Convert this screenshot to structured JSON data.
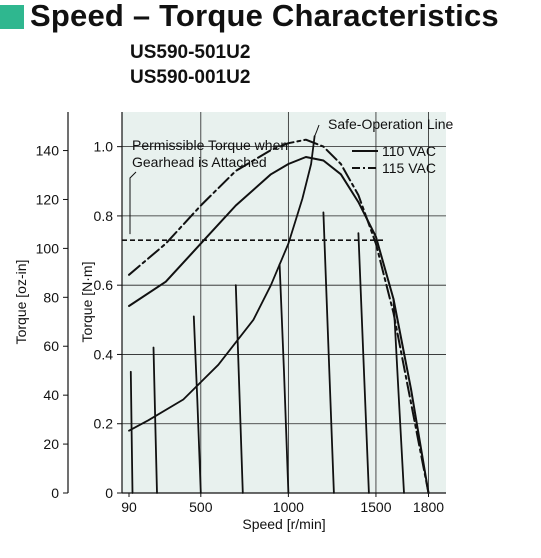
{
  "page": {
    "heading": "Speed – Torque Characteristics",
    "models": [
      "US590-501U2",
      "US590-001U2"
    ]
  },
  "colors": {
    "accent": "#2fb78f",
    "plot_background": "#e8f1ee",
    "curve": "#111111"
  },
  "chart_data": {
    "type": "line",
    "xlabel": "Speed [r/min]",
    "ylabel": "Torque [N·m]",
    "ylabel_secondary": "Torque [oz-in]",
    "xlim": [
      50,
      1900
    ],
    "ylim": [
      0,
      1.1
    ],
    "x_ticks": [
      {
        "value": 90,
        "label": "90"
      },
      {
        "value": 500,
        "label": "500"
      },
      {
        "value": 1000,
        "label": "1000"
      },
      {
        "value": 1500,
        "label": "1500"
      },
      {
        "value": 1800,
        "label": "1800"
      }
    ],
    "y_ticks": [
      {
        "value": 0,
        "label": "0"
      },
      {
        "value": 0.2,
        "label": "0.2"
      },
      {
        "value": 0.4,
        "label": "0.4"
      },
      {
        "value": 0.6,
        "label": "0.6"
      },
      {
        "value": 0.8,
        "label": "0.8"
      },
      {
        "value": 1.0,
        "label": "1.0"
      }
    ],
    "y2_ticks": [
      {
        "value": 0,
        "label": "0"
      },
      {
        "value": 20,
        "label": "20"
      },
      {
        "value": 40,
        "label": "40"
      },
      {
        "value": 60,
        "label": "60"
      },
      {
        "value": 80,
        "label": "80"
      },
      {
        "value": 100,
        "label": "100"
      },
      {
        "value": 120,
        "label": "120"
      },
      {
        "value": 140,
        "label": "140"
      }
    ],
    "y2_per_y": 141.6,
    "grid": true,
    "legend_position": "top-right",
    "legend": [
      {
        "label": "110 VAC",
        "style": "solid"
      },
      {
        "label": "115 VAC",
        "style": "dashdot"
      }
    ],
    "annotations": {
      "safe_line": "Safe-Operation Line",
      "permissible_line1": "Permissible Torque when",
      "permissible_line2": "Gearhead is Attached"
    },
    "permissible_torque": 0.73,
    "series": [
      {
        "style": "solid",
        "role": "outer",
        "x": [
          90,
          300,
          500,
          700,
          900,
          1000,
          1100,
          1200,
          1300,
          1400,
          1500,
          1600,
          1700,
          1800
        ],
        "y": [
          0.54,
          0.61,
          0.72,
          0.83,
          0.92,
          0.95,
          0.97,
          0.96,
          0.92,
          0.84,
          0.74,
          0.56,
          0.3,
          0.0
        ]
      },
      {
        "style": "dashdot",
        "role": "outer",
        "x": [
          90,
          300,
          500,
          700,
          900,
          1000,
          1100,
          1200,
          1300,
          1400,
          1500,
          1600,
          1700,
          1800
        ],
        "y": [
          0.63,
          0.72,
          0.83,
          0.93,
          0.99,
          1.01,
          1.02,
          1.0,
          0.95,
          0.86,
          0.72,
          0.52,
          0.26,
          0.0
        ]
      },
      {
        "style": "solid",
        "role": "safe",
        "x": [
          90,
          200,
          400,
          600,
          800,
          900,
          1000,
          1080,
          1130,
          1150
        ],
        "y": [
          0.18,
          0.21,
          0.27,
          0.37,
          0.5,
          0.6,
          0.72,
          0.85,
          0.95,
          1.03
        ]
      },
      {
        "style": "solid",
        "role": "drop",
        "x": [
          100,
          105,
          110
        ],
        "y": [
          0.35,
          0.18,
          0.0
        ]
      },
      {
        "style": "solid",
        "role": "drop",
        "x": [
          230,
          240,
          250
        ],
        "y": [
          0.42,
          0.2,
          0.0
        ]
      },
      {
        "style": "solid",
        "role": "drop",
        "x": [
          460,
          480,
          500
        ],
        "y": [
          0.51,
          0.27,
          0.0
        ]
      },
      {
        "style": "solid",
        "role": "drop",
        "x": [
          700,
          720,
          740
        ],
        "y": [
          0.6,
          0.3,
          0.0
        ]
      },
      {
        "style": "solid",
        "role": "drop",
        "x": [
          950,
          975,
          1000
        ],
        "y": [
          0.66,
          0.35,
          0.0
        ]
      },
      {
        "style": "solid",
        "role": "drop",
        "x": [
          1200,
          1230,
          1260
        ],
        "y": [
          0.81,
          0.4,
          0.0
        ]
      },
      {
        "style": "solid",
        "role": "drop",
        "x": [
          1400,
          1430,
          1460
        ],
        "y": [
          0.75,
          0.37,
          0.0
        ]
      },
      {
        "style": "solid",
        "role": "drop",
        "x": [
          1600,
          1630,
          1660
        ],
        "y": [
          0.56,
          0.28,
          0.0
        ]
      }
    ]
  }
}
